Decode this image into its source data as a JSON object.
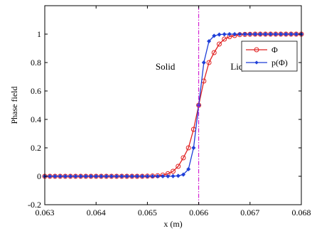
{
  "chart_data": {
    "type": "line",
    "title": "",
    "xlabel": "x (m)",
    "ylabel": "Phase field",
    "xlim": [
      0.063,
      0.068
    ],
    "ylim": [
      -0.2,
      1.2
    ],
    "x_ticks": [
      0.063,
      0.064,
      0.065,
      0.066,
      0.067,
      0.068
    ],
    "x_tick_labels": [
      "0.063",
      "0.064",
      "0.065",
      "0.066",
      "0.067",
      "0.068"
    ],
    "y_ticks": [
      -0.2,
      0,
      0.2,
      0.4,
      0.6,
      0.8,
      1
    ],
    "y_tick_labels": [
      "-0.2",
      "0",
      "0.2",
      "0.4",
      "0.6",
      "0.8",
      "1"
    ],
    "grid": false,
    "legend_position": "top-right",
    "interface_line": {
      "x": 0.066,
      "color": "#cc00cc",
      "style": "dash-dot"
    },
    "annotations": [
      {
        "text": "Solid",
        "x": 0.06535,
        "y": 0.5
      },
      {
        "text": "Liquid",
        "x": 0.06686,
        "y": 0.5
      }
    ],
    "series": [
      {
        "name": "Φ",
        "color": "#e02020",
        "marker": "circle",
        "x": [
          0.063,
          0.0631,
          0.0632,
          0.0633,
          0.0634,
          0.0635,
          0.0636,
          0.0637,
          0.0638,
          0.0639,
          0.064,
          0.0641,
          0.0642,
          0.0643,
          0.0644,
          0.0645,
          0.0646,
          0.0647,
          0.0648,
          0.0649,
          0.065,
          0.0651,
          0.0652,
          0.0653,
          0.0654,
          0.0655,
          0.0656,
          0.0657,
          0.0658,
          0.0659,
          0.066,
          0.0661,
          0.0662,
          0.0663,
          0.0664,
          0.0665,
          0.0666,
          0.0667,
          0.0668,
          0.0669,
          0.067,
          0.0671,
          0.0672,
          0.0673,
          0.0674,
          0.0675,
          0.0676,
          0.0677,
          0.0678,
          0.0679,
          0.068
        ],
        "values": [
          0,
          0,
          0,
          0,
          0,
          0,
          0,
          0,
          0,
          0,
          0,
          0,
          0,
          0,
          0,
          0,
          0,
          0,
          0,
          0,
          0.001,
          0.002,
          0.004,
          0.008,
          0.018,
          0.035,
          0.07,
          0.13,
          0.2,
          0.33,
          0.5,
          0.67,
          0.8,
          0.87,
          0.93,
          0.965,
          0.982,
          0.99,
          0.996,
          0.998,
          0.999,
          1,
          1,
          1,
          1,
          1,
          1,
          1,
          1,
          1,
          1
        ]
      },
      {
        "name": "p(Φ)",
        "color": "#1f3fd8",
        "marker": "diamond",
        "x": [
          0.063,
          0.0631,
          0.0632,
          0.0633,
          0.0634,
          0.0635,
          0.0636,
          0.0637,
          0.0638,
          0.0639,
          0.064,
          0.0641,
          0.0642,
          0.0643,
          0.0644,
          0.0645,
          0.0646,
          0.0647,
          0.0648,
          0.0649,
          0.065,
          0.0651,
          0.0652,
          0.0653,
          0.0654,
          0.0655,
          0.0656,
          0.0657,
          0.0658,
          0.0659,
          0.066,
          0.0661,
          0.0662,
          0.0663,
          0.0664,
          0.0665,
          0.0666,
          0.0667,
          0.0668,
          0.0669,
          0.067,
          0.0671,
          0.0672,
          0.0673,
          0.0674,
          0.0675,
          0.0676,
          0.0677,
          0.0678,
          0.0679,
          0.068
        ],
        "values": [
          0,
          0,
          0,
          0,
          0,
          0,
          0,
          0,
          0,
          0,
          0,
          0,
          0,
          0,
          0,
          0,
          0,
          0,
          0,
          0,
          0,
          0,
          0,
          0,
          0,
          0.001,
          0.003,
          0.012,
          0.05,
          0.2,
          0.5,
          0.8,
          0.95,
          0.988,
          0.997,
          0.999,
          1,
          1,
          1,
          1,
          1,
          1,
          1,
          1,
          1,
          1,
          1,
          1,
          1,
          1,
          1
        ]
      }
    ]
  }
}
